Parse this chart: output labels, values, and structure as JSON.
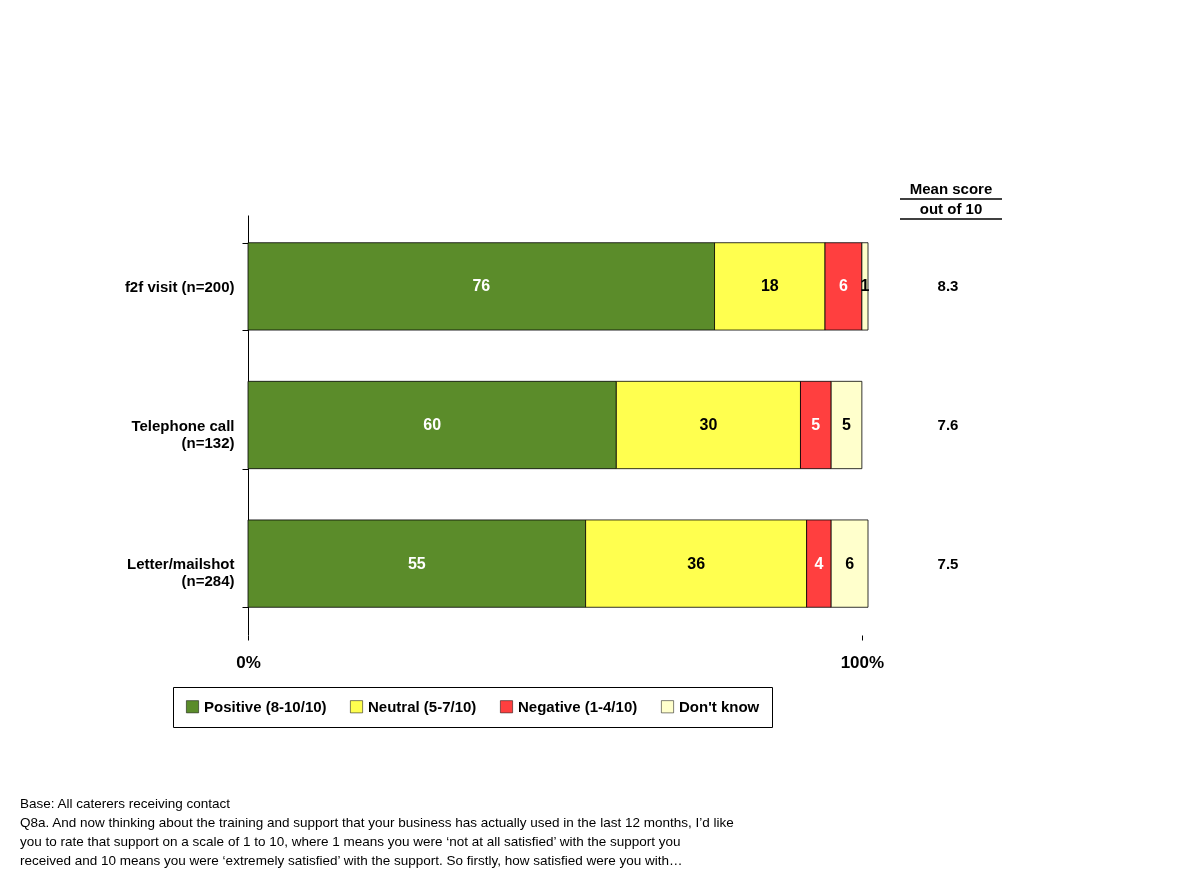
{
  "chart_data": {
    "type": "bar",
    "orientation": "horizontal",
    "stacked": true,
    "categories": [
      "f2f visit (n=200)",
      "Telephone call\n(n=132)",
      "Letter/mailshot\n(n=284)"
    ],
    "series": [
      {
        "name": "Positive (8-10/10)",
        "color": "#5b8c2a",
        "values": [
          76,
          60,
          55
        ]
      },
      {
        "name": "Neutral (5-7/10)",
        "color": "#ffff4f",
        "values": [
          18,
          30,
          36
        ]
      },
      {
        "name": "Negative (1-4/10)",
        "color": "#ff3f3f",
        "values": [
          6,
          5,
          4
        ]
      },
      {
        "name": "Don't know",
        "color": "#ffffcc",
        "values": [
          1,
          5,
          6
        ]
      }
    ],
    "xlim": [
      0,
      101
    ],
    "xticks": [
      {
        "value": 0,
        "label": "0%"
      },
      {
        "value": 100,
        "label": "100%"
      }
    ],
    "data_labels": true,
    "legend": "bottom",
    "grid": false,
    "annotations": [
      "Mean score\nout of 10",
      "8.3",
      "7.6",
      "7.5",
      "Base: All caterers receiving contact",
      "Q8a. And now thinking about the training and support that your business has actually used in the last 12 months, I’d like you to rate that support on a scale of 1 to 10, where 1 means you were ‘not at all satisfied’ with the support you received and 10 means you were ‘extremely satisfied’ with the support.  So firstly, how satisfied were you with…"
    ]
  }
}
